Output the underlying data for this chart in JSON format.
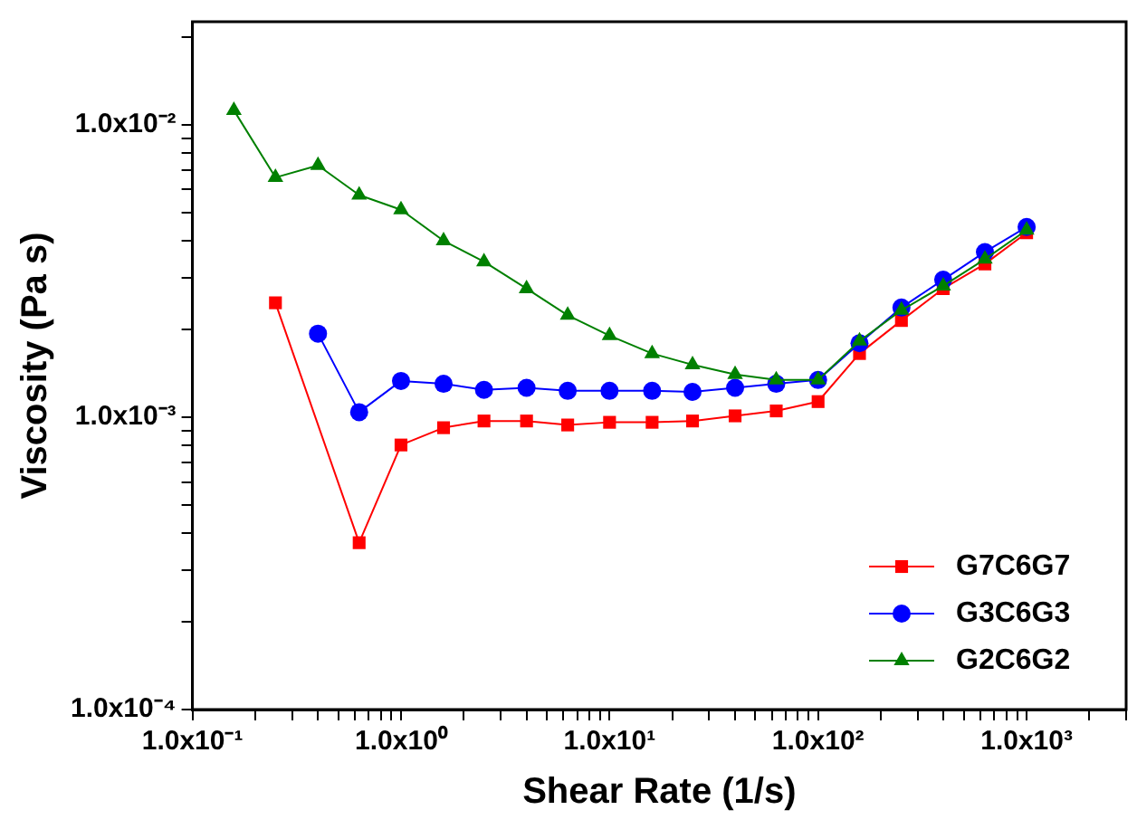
{
  "chart_data": {
    "type": "line",
    "xlabel": "Shear Rate (1/s)",
    "ylabel": "Viscosity (Pa s)",
    "log": "xy",
    "grid": false,
    "legend": "bottom right",
    "line_style": "solid",
    "xlim": [
      0.1,
      3000
    ],
    "ylim": [
      0.0001,
      0.0225
    ],
    "xticks": [
      {
        "value": 0.1,
        "label": "1.0x10⁻¹"
      },
      {
        "value": 0.2,
        "label": null
      },
      {
        "value": 0.3,
        "label": null
      },
      {
        "value": 0.4,
        "label": null
      },
      {
        "value": 0.5,
        "label": null
      },
      {
        "value": 0.6,
        "label": null
      },
      {
        "value": 0.7,
        "label": null
      },
      {
        "value": 0.8,
        "label": null
      },
      {
        "value": 0.9,
        "label": null
      },
      {
        "value": 1,
        "label": "1.0x10⁰"
      },
      {
        "value": 2,
        "label": null
      },
      {
        "value": 3,
        "label": null
      },
      {
        "value": 4,
        "label": null
      },
      {
        "value": 5,
        "label": null
      },
      {
        "value": 6,
        "label": null
      },
      {
        "value": 7,
        "label": null
      },
      {
        "value": 8,
        "label": null
      },
      {
        "value": 9,
        "label": null
      },
      {
        "value": 10,
        "label": "1.0x10¹"
      },
      {
        "value": 20,
        "label": null
      },
      {
        "value": 30,
        "label": null
      },
      {
        "value": 40,
        "label": null
      },
      {
        "value": 50,
        "label": null
      },
      {
        "value": 60,
        "label": null
      },
      {
        "value": 70,
        "label": null
      },
      {
        "value": 80,
        "label": null
      },
      {
        "value": 90,
        "label": null
      },
      {
        "value": 100,
        "label": "1.0x10²"
      },
      {
        "value": 200,
        "label": null
      },
      {
        "value": 300,
        "label": null
      },
      {
        "value": 400,
        "label": null
      },
      {
        "value": 500,
        "label": null
      },
      {
        "value": 600,
        "label": null
      },
      {
        "value": 700,
        "label": null
      },
      {
        "value": 800,
        "label": null
      },
      {
        "value": 900,
        "label": null
      },
      {
        "value": 1000,
        "label": "1.0x10³"
      },
      {
        "value": 2000,
        "label": null
      },
      {
        "value": 3000,
        "label": null
      }
    ],
    "yticks": [
      {
        "value": 0.0001,
        "label": "1.0x10⁻⁴"
      },
      {
        "value": 0.0002,
        "label": null
      },
      {
        "value": 0.0003,
        "label": null
      },
      {
        "value": 0.0004,
        "label": null
      },
      {
        "value": 0.0005,
        "label": null
      },
      {
        "value": 0.0006,
        "label": null
      },
      {
        "value": 0.0007,
        "label": null
      },
      {
        "value": 0.0008,
        "label": null
      },
      {
        "value": 0.0009,
        "label": null
      },
      {
        "value": 0.001,
        "label": "1.0x10⁻³"
      },
      {
        "value": 0.002,
        "label": null
      },
      {
        "value": 0.003,
        "label": null
      },
      {
        "value": 0.004,
        "label": null
      },
      {
        "value": 0.005,
        "label": null
      },
      {
        "value": 0.006,
        "label": null
      },
      {
        "value": 0.007,
        "label": null
      },
      {
        "value": 0.008,
        "label": null
      },
      {
        "value": 0.009,
        "label": null
      },
      {
        "value": 0.01,
        "label": "1.0x10⁻²"
      },
      {
        "value": 0.02,
        "label": null
      }
    ],
    "series": [
      {
        "name": "G7C6G7",
        "color": "#ff0000",
        "marker": "square",
        "x": [
          0.25,
          0.63,
          1,
          1.6,
          2.5,
          4,
          6.3,
          10,
          16,
          25,
          40,
          63,
          100,
          158,
          251,
          398,
          631,
          1000
        ],
        "values": [
          0.00246,
          0.000372,
          0.000803,
          0.00092,
          0.00097,
          0.00097,
          0.00094,
          0.00096,
          0.00096,
          0.00097,
          0.00101,
          0.00105,
          0.00113,
          0.00165,
          0.00214,
          0.00275,
          0.00334,
          0.00427
        ]
      },
      {
        "name": "G3C6G3",
        "color": "#0000ff",
        "marker": "circle",
        "x": [
          0.4,
          0.63,
          1,
          1.6,
          2.5,
          4,
          6.3,
          10,
          16,
          25,
          40,
          63,
          100,
          158,
          251,
          398,
          631,
          1000
        ],
        "values": [
          0.00193,
          0.00104,
          0.00133,
          0.0013,
          0.00124,
          0.00126,
          0.00123,
          0.00123,
          0.00123,
          0.00122,
          0.00126,
          0.0013,
          0.00134,
          0.00179,
          0.00237,
          0.00295,
          0.00367,
          0.00447
        ]
      },
      {
        "name": "G2C6G2",
        "color": "#008000",
        "marker": "triangle",
        "x": [
          0.158,
          0.25,
          0.4,
          0.63,
          1,
          1.6,
          2.5,
          4,
          6.3,
          10,
          16,
          25,
          40,
          63,
          100,
          158,
          251,
          398,
          631,
          1000
        ],
        "values": [
          0.0112,
          0.0066,
          0.00726,
          0.00575,
          0.00512,
          0.00401,
          0.0034,
          0.00275,
          0.00223,
          0.0019,
          0.00165,
          0.00151,
          0.0014,
          0.00134,
          0.00134,
          0.00182,
          0.00232,
          0.00281,
          0.00347,
          0.00436
        ]
      }
    ]
  }
}
